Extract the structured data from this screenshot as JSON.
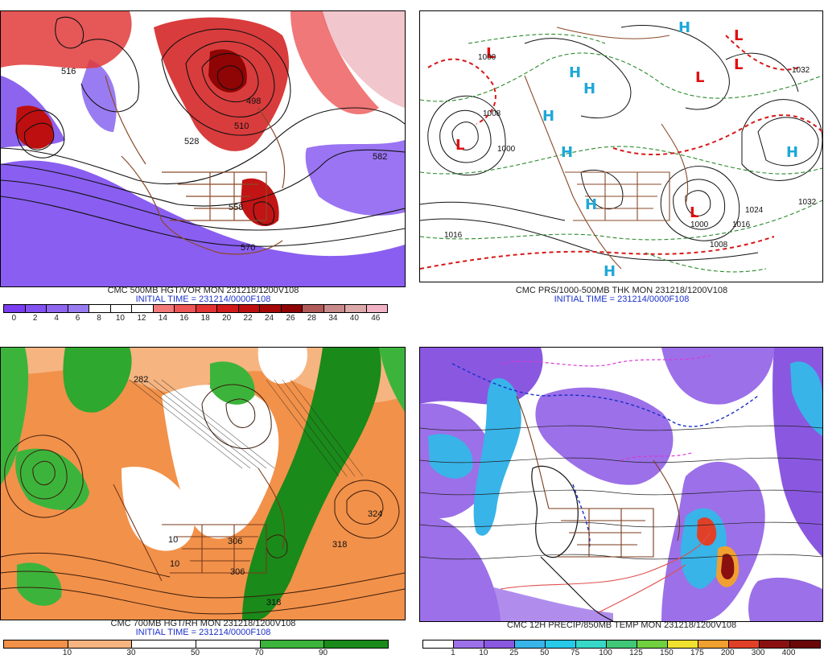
{
  "panels": [
    {
      "id": "vort500",
      "title": "CMC 500MB HGT/VOR MON 231218/1200V108",
      "init": "INITIAL TIME = 231214/0000F108",
      "legend": {
        "labels": [
          "0",
          "2",
          "4",
          "6",
          "8",
          "10",
          "12",
          "14",
          "16",
          "18",
          "20",
          "22",
          "24",
          "26",
          "28",
          "34",
          "40",
          "46"
        ],
        "colors": [
          "#7a3df0",
          "#8452f0",
          "#8e66f0",
          "#9a7cf2",
          "#ffffff",
          "#ffffff",
          "#ffffff",
          "#f27a7a",
          "#ec5656",
          "#e23232",
          "#d21a1a",
          "#bd0f0f",
          "#a60808",
          "#8f0404",
          "#b05a5a",
          "#c88a8a",
          "#dca8a8",
          "#f2b2c6"
        ]
      },
      "contour_labels": [
        "528",
        "516",
        "582",
        "558",
        "570",
        "510",
        "498"
      ]
    },
    {
      "id": "prs_thk",
      "title": "CMC PRS/1000-500MB THK MON 231218/1200V108",
      "init": "INITIAL TIME = 231214/0000F108",
      "highs": [
        "H",
        "H",
        "H",
        "H",
        "H",
        "H",
        "H",
        "H"
      ],
      "lows": [
        "L",
        "L",
        "L",
        "L",
        "L",
        "L"
      ],
      "contour_labels": [
        "1000",
        "1008",
        "1016",
        "1000",
        "1024",
        "1032",
        "1016",
        "1008",
        "1000",
        "1032"
      ]
    },
    {
      "id": "rh700",
      "title": "CMC 700MB HGT/RH MON 231218/1200V108",
      "init": "INITIAL TIME = 231214/0000F108",
      "legend": {
        "labels": [
          "10",
          "30",
          "50",
          "70",
          "90"
        ],
        "colors": [
          "#f2914a",
          "#f6b480",
          "#ffffff",
          "#ffffff",
          "#3cb43c",
          "#1a8a1a"
        ]
      },
      "contour_labels": [
        "282",
        "324",
        "306",
        "318",
        "306",
        "318",
        "10",
        "10"
      ]
    },
    {
      "id": "precip",
      "title": "CMC 12H PRECIP/850MB TEMP MON 231218/1200V108",
      "init": "",
      "legend": {
        "labels": [
          "1",
          "10",
          "25",
          "50",
          "75",
          "100",
          "125",
          "150",
          "175",
          "200",
          "300",
          "400"
        ],
        "colors": [
          "#ffffff",
          "#9c70e8",
          "#8a58e0",
          "#38b4e8",
          "#28c8e8",
          "#38d8c8",
          "#40c878",
          "#70d040",
          "#f0e030",
          "#f0a030",
          "#e04028",
          "#8a1010",
          "#6a0808"
        ]
      }
    }
  ]
}
